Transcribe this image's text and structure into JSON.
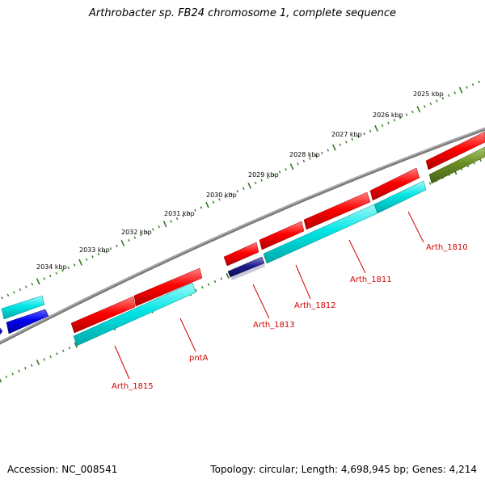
{
  "title": "Arthrobacter sp. FB24 chromosome 1, complete sequence",
  "footer": {
    "accession": "Accession: NC_008541",
    "summary": "Topology: circular; Length: 4,698,945 bp; Genes: 4,214"
  },
  "scale_labels": [
    "2025 kbp",
    "2026 kbp",
    "2027 kbp",
    "2028 kbp",
    "2029 kbp",
    "2030 kbp",
    "2031 kbp",
    "2032 kbp",
    "2033 kbp",
    "2034 kbp"
  ],
  "gene_labels": [
    "Arth_1810",
    "Arth_1811",
    "Arth_1812",
    "Arth_1813",
    "pntA",
    "Arth_1815"
  ],
  "colors": {
    "backbone": "#808080",
    "scale_ticks": "#2e7d1e",
    "gene_label": "#d40000",
    "label_line": "#d40000",
    "forward_gene": "#ff0000",
    "reverse_cds": "#00e5e5",
    "reverse_blue": "#0000ee",
    "reverse_navy": "#1c1c8c",
    "reverse_olive": "#6b8e23"
  }
}
